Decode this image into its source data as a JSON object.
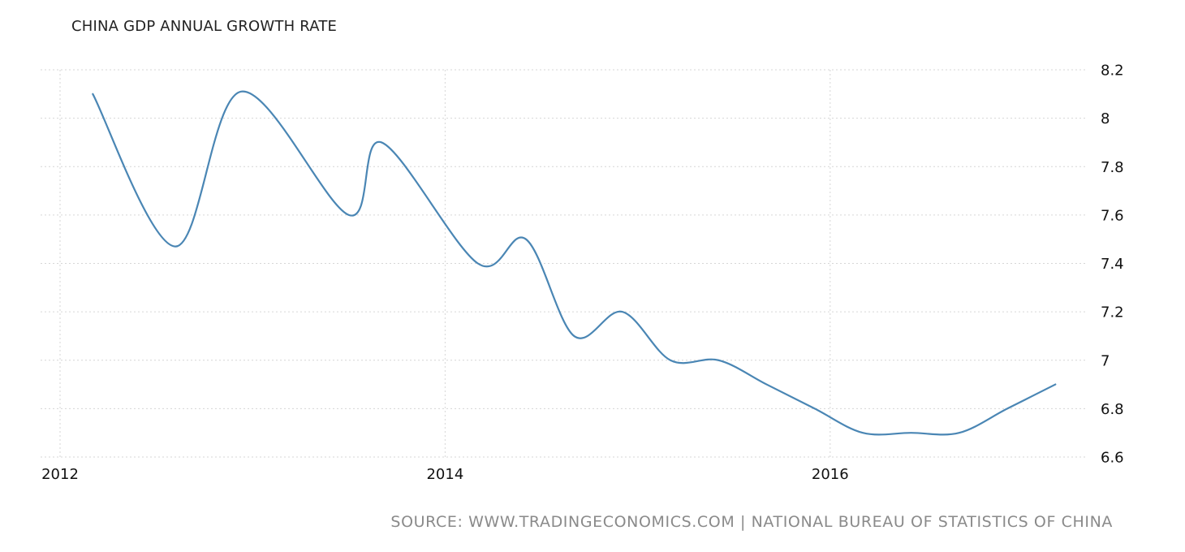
{
  "chart_data": {
    "type": "line",
    "title": "CHINA GDP ANNUAL GROWTH RATE",
    "source": "SOURCE: WWW.TRADINGECONOMICS.COM | NATIONAL BUREAU OF STATISTICS OF CHINA",
    "xlabel": "",
    "ylabel": "",
    "x_ticks": [
      2012,
      2014,
      2016
    ],
    "y_ticks": [
      "6.6",
      "6.8",
      "7",
      "7.2",
      "7.4",
      "7.6",
      "7.8",
      "8",
      "8.2"
    ],
    "xlim": [
      2012.0,
      2017.0
    ],
    "ylim": [
      6.6,
      8.2
    ],
    "grid": true,
    "y_axis_side": "right",
    "line_color": "#4a86b4",
    "series": [
      {
        "x": [
          2012.17,
          2012.6,
          2012.94,
          2013.5,
          2013.67,
          2014.17,
          2014.42,
          2014.67,
          2014.92,
          2015.17,
          2015.42,
          2015.67,
          2015.92,
          2016.17,
          2016.42,
          2016.67,
          2016.92,
          2017.17
        ],
        "y": [
          8.1,
          7.47,
          8.11,
          7.6,
          7.9,
          7.4,
          7.5,
          7.1,
          7.2,
          7.0,
          7.0,
          6.9,
          6.8,
          6.7,
          6.7,
          6.7,
          6.8,
          6.9
        ]
      }
    ]
  }
}
